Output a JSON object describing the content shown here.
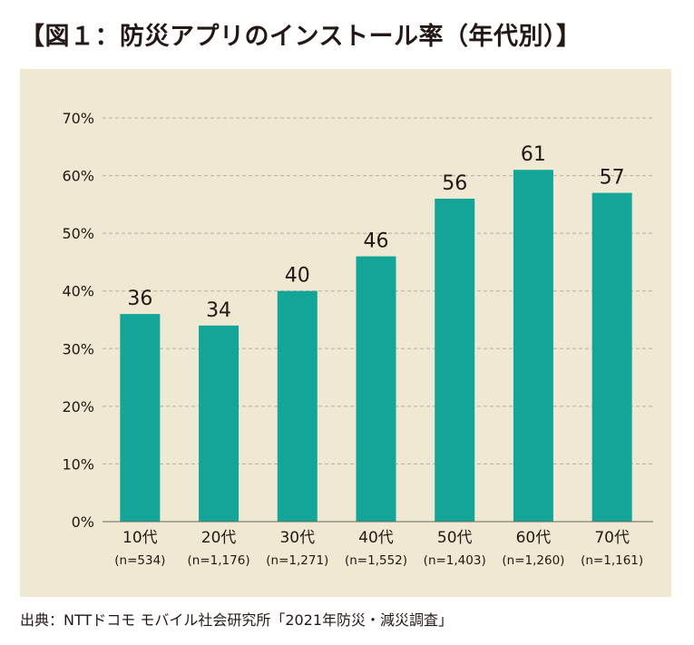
{
  "title": "【図１：防災アプリのインストール率（年代別）】",
  "source": "出典：NTTドコモ モバイル社会研究所「2021年防災・減災調査」",
  "colors": {
    "bar": "#13a698",
    "panel": "#efe8d3",
    "grid": "#b5afa1",
    "text": "#231815"
  },
  "chart_data": {
    "type": "bar",
    "title": "【図１：防災アプリのインストール率（年代別）】",
    "xlabel": "",
    "ylabel": "",
    "categories": [
      "10代",
      "20代",
      "30代",
      "40代",
      "50代",
      "60代",
      "70代"
    ],
    "sample_sizes": [
      "(n=534)",
      "(n=1,176)",
      "(n=1,271)",
      "(n=1,552)",
      "(n=1,403)",
      "(n=1,260)",
      "(n=1,161)"
    ],
    "values": [
      36,
      34,
      40,
      46,
      56,
      61,
      57
    ],
    "ylim": [
      0,
      70
    ],
    "yticks": [
      "0%",
      "10%",
      "20%",
      "30%",
      "40%",
      "50%",
      "60%",
      "70%"
    ],
    "grid": true,
    "legend": "none"
  }
}
